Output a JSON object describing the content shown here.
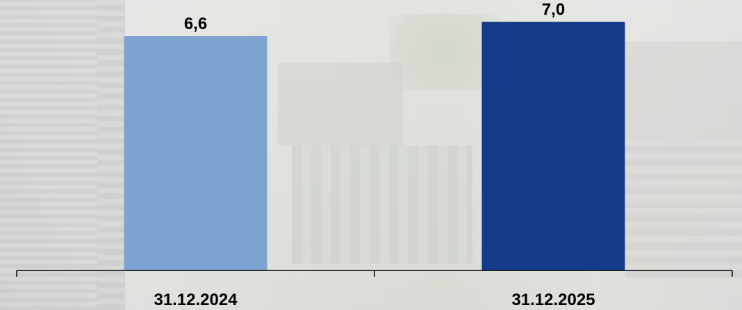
{
  "chart_data": {
    "type": "bar",
    "categories": [
      "31.12.2024",
      "31.12.2025"
    ],
    "values": [
      6.6,
      7.0
    ],
    "value_labels": [
      "6,6",
      "7,0"
    ],
    "colors": [
      "#7fa3d0",
      "#133b8a"
    ],
    "title": "",
    "xlabel": "",
    "ylabel": "",
    "ylim": [
      0,
      7.5
    ],
    "grid": false,
    "legend": "none"
  }
}
